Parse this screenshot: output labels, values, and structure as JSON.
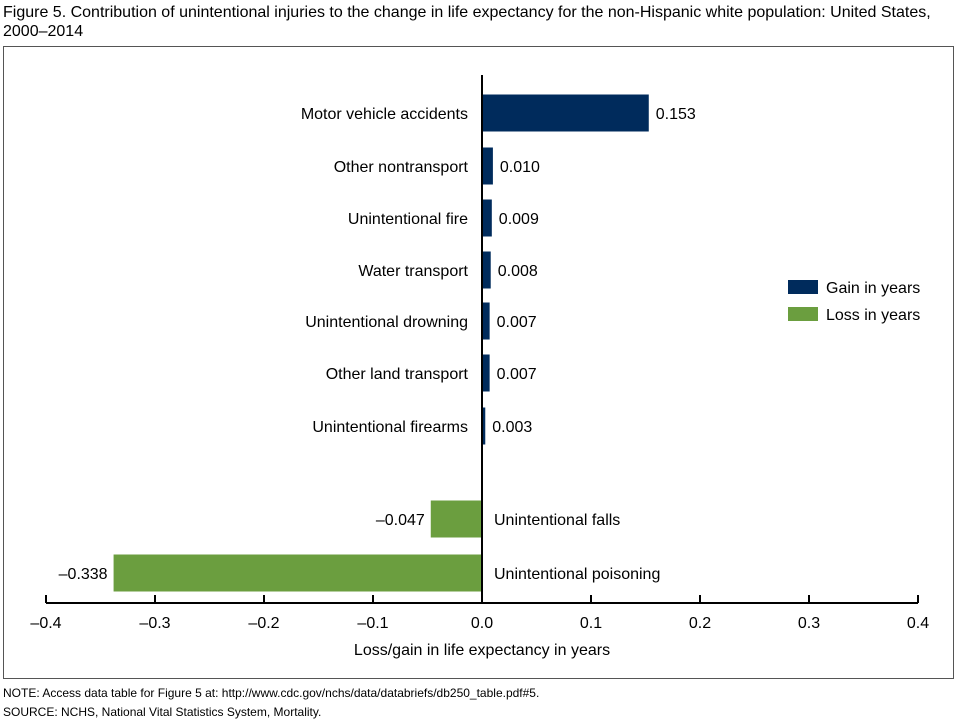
{
  "title": "Figure 5. Contribution of unintentional injuries to the change in life expectancy for the non-Hispanic white population: United States, 2000–2014",
  "chart_data": {
    "type": "bar",
    "orientation": "horizontal",
    "categories": [
      "Motor vehicle accidents",
      "Other nontransport",
      "Unintentional fire",
      "Water transport",
      "Unintentional drowning",
      "Other land transport",
      "Unintentional firearms",
      "Unintentional falls",
      "Unintentional poisoning"
    ],
    "values": [
      0.153,
      0.01,
      0.009,
      0.008,
      0.007,
      0.007,
      0.003,
      -0.047,
      -0.338
    ],
    "value_labels": [
      "0.153",
      "0.010",
      "0.009",
      "0.008",
      "0.007",
      "0.007",
      "0.003",
      "–0.047",
      "–0.338"
    ],
    "xlabel": "Loss/gain in life expectancy in years",
    "xlim": [
      -0.4,
      0.4
    ],
    "xticks": [
      -0.4,
      -0.3,
      -0.2,
      -0.1,
      0.0,
      0.1,
      0.2,
      0.3,
      0.4
    ],
    "xtick_labels": [
      "–0.4",
      "–0.3",
      "–0.2",
      "–0.1",
      "0.0",
      "0.1",
      "0.2",
      "0.3",
      "0.4"
    ],
    "grid": false,
    "legend": {
      "placement": "right",
      "entries": [
        {
          "label": "Gain in years",
          "color": "#002b5c"
        },
        {
          "label": "Loss in years",
          "color": "#6b9e3f"
        }
      ]
    }
  },
  "footer": {
    "note": "NOTE: Access data table for Figure 5 at: http://www.cdc.gov/nchs/data/databriefs/db250_table.pdf#5.",
    "source": "SOURCE: NCHS, National Vital Statistics System, Mortality."
  }
}
